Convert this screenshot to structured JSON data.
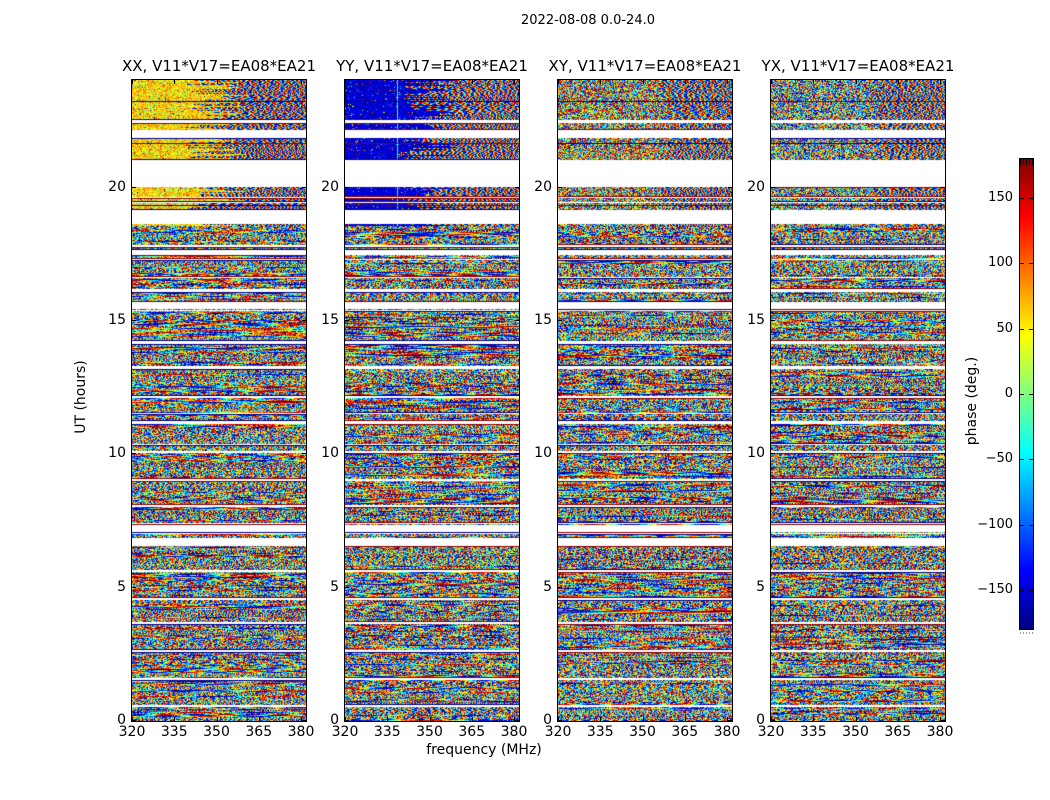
{
  "figure": {
    "title": "2022-08-08 0.0-24.0",
    "xlabel": "frequency (MHz)",
    "ylabel": "UT (hours)",
    "colorbar_label": "phase (deg.)",
    "background_color": "#ffffff",
    "text_color": "#000000",
    "axis_color": "#000000"
  },
  "chart_data": {
    "type": "heatmap",
    "title": "2022-08-08 0.0-24.0",
    "description": "Visibility phase versus frequency (x) and UT time (y) for baseline V11*V17 = EA08*EA21 on 2022-08-08, shown for four polarisation products. White horizontal bands are time ranges with no data; they are identical in all four panels.",
    "panels": [
      {
        "id": "xx",
        "title": "XX, V11*V17=EA08*EA21",
        "top_block_character": "phase concentrated near +50 deg (yellow/orange) with diagonal fringes at high frequency"
      },
      {
        "id": "yy",
        "title": "YY, V11*V17=EA08*EA21",
        "top_block_character": "phase concentrated near -150 deg (dark blue) with diagonal fringes at high frequency"
      },
      {
        "id": "xy",
        "title": "XY, V11*V17=EA08*EA21",
        "top_block_character": "random multicoloured phase speckle with fringes at high frequency"
      },
      {
        "id": "yx",
        "title": "YX, V11*V17=EA08*EA21",
        "top_block_character": "random multicoloured phase speckle with fringes at high frequency"
      }
    ],
    "x_axis": {
      "label": "frequency (MHz)",
      "range_mhz": [
        320,
        382
      ],
      "ticks": [
        {
          "v": 320,
          "label": "320"
        },
        {
          "v": 335,
          "label": "335"
        },
        {
          "v": 350,
          "label": "350"
        },
        {
          "v": 365,
          "label": "365"
        },
        {
          "v": 380,
          "label": "380"
        }
      ]
    },
    "y_axis": {
      "label": "UT (hours)",
      "range_hours": [
        0,
        24
      ],
      "ticks": [
        {
          "v": 0,
          "label": "0"
        },
        {
          "v": 5,
          "label": "5"
        },
        {
          "v": 10,
          "label": "10"
        },
        {
          "v": 15,
          "label": "15"
        },
        {
          "v": 20,
          "label": "20"
        }
      ]
    },
    "colorbar": {
      "label": "phase (deg.)",
      "range_deg": [
        -180,
        180
      ],
      "colormap": "jet",
      "ticks": [
        {
          "v": 150,
          "label": "150"
        },
        {
          "v": 100,
          "label": "100"
        },
        {
          "v": 50,
          "label": "50"
        },
        {
          "v": 0,
          "label": "0"
        },
        {
          "v": -50,
          "label": "−50"
        },
        {
          "v": -100,
          "label": "−100"
        },
        {
          "v": -150,
          "label": "−150"
        }
      ],
      "stops_top_to_bottom": [
        {
          "pos": 0.0,
          "color": "#7f0000"
        },
        {
          "pos": 0.125,
          "color": "#ff0000"
        },
        {
          "pos": 0.375,
          "color": "#ffff00"
        },
        {
          "pos": 0.625,
          "color": "#00ffff"
        },
        {
          "pos": 0.875,
          "color": "#0000ff"
        },
        {
          "pos": 1.0,
          "color": "#00007f"
        }
      ]
    },
    "time_gaps_hours": [
      [
        0.52,
        0.6
      ],
      [
        1.53,
        1.61
      ],
      [
        2.58,
        2.65
      ],
      [
        3.62,
        3.7
      ],
      [
        4.52,
        4.59
      ],
      [
        5.56,
        5.64
      ],
      [
        6.53,
        6.83
      ],
      [
        7.05,
        7.32
      ],
      [
        7.99,
        8.06
      ],
      [
        9.0,
        9.07
      ],
      [
        10.04,
        10.12
      ],
      [
        11.12,
        11.23
      ],
      [
        12.09,
        12.17
      ],
      [
        13.18,
        13.29
      ],
      [
        14.11,
        14.22
      ],
      [
        15.42,
        15.71
      ],
      [
        16.05,
        16.2
      ],
      [
        17.47,
        17.65
      ],
      [
        18.63,
        19.15
      ],
      [
        19.41,
        19.45
      ],
      [
        19.6,
        19.64
      ],
      [
        20.01,
        21.01
      ],
      [
        21.84,
        22.13
      ],
      [
        22.39,
        22.51
      ]
    ],
    "dark_time_rows_hours": [
      23.2,
      21.65,
      19.32
    ]
  }
}
